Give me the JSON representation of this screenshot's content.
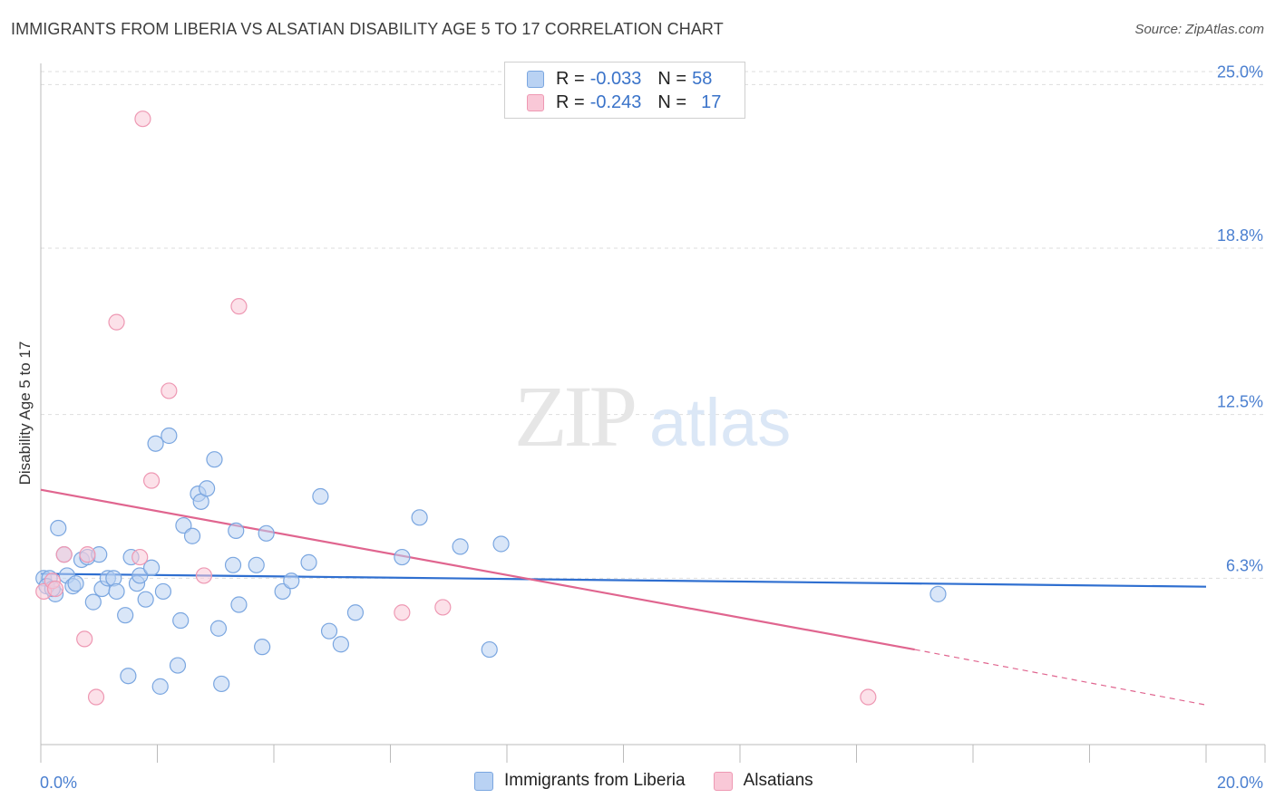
{
  "header": {
    "title": "IMMIGRANTS FROM LIBERIA VS ALSATIAN DISABILITY AGE 5 TO 17 CORRELATION CHART",
    "source": "Source: ZipAtlas.com"
  },
  "legend": {
    "rows": [
      {
        "r_label": "R = ",
        "r_value": "-0.033",
        "n_label": "N = ",
        "n_value": "58"
      },
      {
        "r_label": "R = ",
        "r_value": "-0.243",
        "n_label": "N = ",
        "n_value": "17"
      }
    ]
  },
  "bottom_legend": {
    "items": [
      {
        "label": "Immigrants from Liberia"
      },
      {
        "label": "Alsatians"
      }
    ]
  },
  "watermark": {
    "zip": "ZIP",
    "atlas": "atlas"
  },
  "colors": {
    "blue_fill": "#b9d2f3",
    "blue_stroke": "#7aa6e0",
    "blue_line": "#2f6fd0",
    "pink_fill": "#f9c8d7",
    "pink_stroke": "#ee98b3",
    "pink_line": "#e0658f",
    "axis_text": "#4a7fd0",
    "grid": "#dddddd"
  },
  "chart_data": {
    "type": "scatter",
    "title": "IMMIGRANTS FROM LIBERIA VS ALSATIAN DISABILITY AGE 5 TO 17 CORRELATION CHART",
    "xlabel": "",
    "ylabel": "Disability Age 5 to 17",
    "xlim": [
      0,
      20
    ],
    "ylim": [
      0,
      25.8
    ],
    "x_tick_labels": [
      "0.0%",
      "20.0%"
    ],
    "y_ticks": [
      6.3,
      12.5,
      18.8,
      25.0
    ],
    "y_tick_labels": [
      "6.3%",
      "12.5%",
      "18.8%",
      "25.0%"
    ],
    "grid": true,
    "series": [
      {
        "name": "Immigrants from Liberia",
        "color": "#b9d2f3",
        "points": [
          [
            0.05,
            6.3
          ],
          [
            0.15,
            6.3
          ],
          [
            0.25,
            5.7
          ],
          [
            0.3,
            8.2
          ],
          [
            0.4,
            7.2
          ],
          [
            0.45,
            6.4
          ],
          [
            0.55,
            6.0
          ],
          [
            0.6,
            6.1
          ],
          [
            0.7,
            7.0
          ],
          [
            0.8,
            7.1
          ],
          [
            0.9,
            5.4
          ],
          [
            1.0,
            7.2
          ],
          [
            1.05,
            5.9
          ],
          [
            1.15,
            6.3
          ],
          [
            1.25,
            6.3
          ],
          [
            1.3,
            5.8
          ],
          [
            1.45,
            4.9
          ],
          [
            1.5,
            2.6
          ],
          [
            1.55,
            7.1
          ],
          [
            1.65,
            6.1
          ],
          [
            1.7,
            6.4
          ],
          [
            1.8,
            5.5
          ],
          [
            1.9,
            6.7
          ],
          [
            1.97,
            11.4
          ],
          [
            2.05,
            2.2
          ],
          [
            2.1,
            5.8
          ],
          [
            2.2,
            11.7
          ],
          [
            2.35,
            3.0
          ],
          [
            2.4,
            4.7
          ],
          [
            2.45,
            8.3
          ],
          [
            2.6,
            7.9
          ],
          [
            2.7,
            9.5
          ],
          [
            2.75,
            9.2
          ],
          [
            2.85,
            9.7
          ],
          [
            2.98,
            10.8
          ],
          [
            3.05,
            4.4
          ],
          [
            3.1,
            2.3
          ],
          [
            3.3,
            6.8
          ],
          [
            3.35,
            8.1
          ],
          [
            3.4,
            5.3
          ],
          [
            3.7,
            6.8
          ],
          [
            3.8,
            3.7
          ],
          [
            3.87,
            8.0
          ],
          [
            4.15,
            5.8
          ],
          [
            4.3,
            6.2
          ],
          [
            4.6,
            6.9
          ],
          [
            4.8,
            9.4
          ],
          [
            4.95,
            4.3
          ],
          [
            5.15,
            3.8
          ],
          [
            5.4,
            5.0
          ],
          [
            6.2,
            7.1
          ],
          [
            6.5,
            8.6
          ],
          [
            7.2,
            7.5
          ],
          [
            7.7,
            3.6
          ],
          [
            7.9,
            7.6
          ],
          [
            15.4,
            5.7
          ],
          [
            0.1,
            6.0
          ],
          [
            0.2,
            5.9
          ]
        ],
        "trend": {
          "x": [
            0,
            20
          ],
          "y": [
            6.47,
            5.98
          ]
        }
      },
      {
        "name": "Alsatians",
        "color": "#f9c8d7",
        "points": [
          [
            0.05,
            5.8
          ],
          [
            0.2,
            6.2
          ],
          [
            0.25,
            5.9
          ],
          [
            0.4,
            7.2
          ],
          [
            0.75,
            4.0
          ],
          [
            0.8,
            7.2
          ],
          [
            0.95,
            1.8
          ],
          [
            1.3,
            16.0
          ],
          [
            1.7,
            7.1
          ],
          [
            1.75,
            23.7
          ],
          [
            1.9,
            10.0
          ],
          [
            2.2,
            13.4
          ],
          [
            2.8,
            6.4
          ],
          [
            3.4,
            16.6
          ],
          [
            6.2,
            5.0
          ],
          [
            6.9,
            5.2
          ],
          [
            14.2,
            1.8
          ]
        ],
        "trend": {
          "x": [
            0,
            15
          ],
          "y": [
            9.65,
            3.6
          ]
        },
        "trend_dashed": {
          "x": [
            15,
            20
          ],
          "y": [
            3.6,
            1.5
          ]
        }
      }
    ]
  }
}
